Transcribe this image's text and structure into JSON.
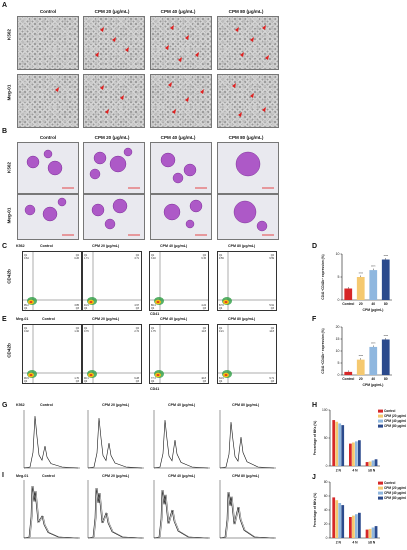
{
  "panels": {
    "A": "A",
    "B": "B",
    "C": "C",
    "D": "D",
    "E": "E",
    "F": "F",
    "G": "G",
    "H": "H",
    "I": "I",
    "J": "J"
  },
  "col_titles": [
    "Control",
    "CPM 20 (μg/mL)",
    "CPM 40 (μg/mL)",
    "CPM 80 (μg/mL)"
  ],
  "rows": {
    "k562": "K562",
    "meg01": "Meg-01"
  },
  "facs": {
    "ylabel": "CD42b",
    "xlabel": "CD41",
    "c_quadrants": [
      [
        "0.64",
        "0.26",
        "95.2",
        "3.85"
      ],
      [
        "1.71",
        "3.71",
        "91.9",
        "4.97"
      ],
      [
        "3.40",
        "6.15",
        "86.4",
        "4.24"
      ],
      [
        "9.59",
        "9.59",
        "87.6",
        "5.91"
      ]
    ],
    "e_quadrants": [
      [
        "0.02",
        "1.32",
        "96.9",
        "1.70"
      ],
      [
        "0.76",
        "2.72",
        "90.1",
        "6.28"
      ],
      [
        "1.75",
        "11.8",
        "77.3",
        "10.8"
      ],
      [
        "0.21",
        "14.8",
        "84.9",
        "9.71"
      ]
    ]
  },
  "hist_x_ticks": [
    "2 N",
    "4 N",
    "≥8 N"
  ],
  "colors": {
    "control": "#d62728",
    "cpm20": "#f5c970",
    "cpm40": "#8fb7df",
    "cpm80": "#2b4a8c",
    "cell_purple": "#a23fc0"
  },
  "chart_data": [
    {
      "type": "bar",
      "panel": "D",
      "ylabel": "CD41⁺CD42b⁺ expression (%)",
      "xlabel": "CPM (μg/mL)",
      "categories": [
        "Control",
        "20",
        "40",
        "80"
      ],
      "values": [
        2.5,
        5.0,
        6.5,
        8.8
      ],
      "ylim": [
        0,
        10
      ],
      "yticks": [
        "0",
        "5",
        "10"
      ],
      "sig": [
        "",
        "****",
        "****",
        "****"
      ]
    },
    {
      "type": "bar",
      "panel": "F",
      "ylabel": "CD41⁺CD42b⁺ expression (%)",
      "xlabel": "CPM (μg/mL)",
      "categories": [
        "Control",
        "20",
        "40",
        "80"
      ],
      "values": [
        1.3,
        6.4,
        11.7,
        14.8
      ],
      "ylim": [
        0,
        20
      ],
      "yticks": [
        "0",
        "5",
        "10",
        "15",
        "20"
      ],
      "sig": [
        "",
        "****",
        "****",
        "****"
      ]
    },
    {
      "type": "bar",
      "panel": "H",
      "ylabel": "Percentage of MKs (%)",
      "categories": [
        "2 N",
        "4 N",
        "≥8 N"
      ],
      "ylim": [
        0,
        100
      ],
      "yticks": [
        "0",
        "50",
        "100"
      ],
      "series": [
        {
          "name": "Control",
          "values": [
            82,
            40,
            7
          ]
        },
        {
          "name": "CPM (20 μg/mL)",
          "values": [
            79,
            42,
            8
          ]
        },
        {
          "name": "CPM (40 μg/mL)",
          "values": [
            76,
            44,
            10
          ]
        },
        {
          "name": "CPM (80 μg/mL)",
          "values": [
            73,
            46,
            12
          ]
        }
      ]
    },
    {
      "type": "bar",
      "panel": "J",
      "ylabel": "Percentage of MKs (%)",
      "categories": [
        "2 N",
        "4 N",
        "≥8 N"
      ],
      "ylim": [
        0,
        80
      ],
      "yticks": [
        "0",
        "20",
        "40",
        "60",
        "80"
      ],
      "series": [
        {
          "name": "Control",
          "values": [
            58,
            30,
            12
          ]
        },
        {
          "name": "CPM (20 μg/mL)",
          "values": [
            54,
            32,
            13
          ]
        },
        {
          "name": "CPM (40 μg/mL)",
          "values": [
            50,
            34,
            15
          ]
        },
        {
          "name": "CPM (80 μg/mL)",
          "values": [
            47,
            36,
            17
          ]
        }
      ]
    }
  ]
}
